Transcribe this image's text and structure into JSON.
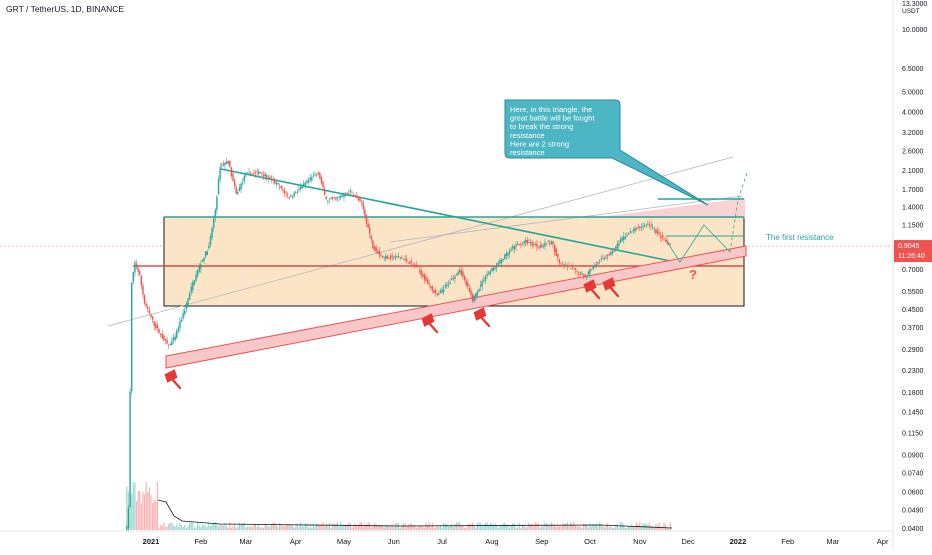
{
  "header": {
    "symbol": "GRT / TetherUS, 1D, BINANCE"
  },
  "price_axis": {
    "top_value": "13.3000",
    "currency": "USDT",
    "current_price": "0.9045",
    "countdown": "11:26:40",
    "current_price_color": "#ef5350"
  },
  "colors": {
    "up": "#26a69a",
    "down": "#ef5350",
    "resistance_line": "#26a69a",
    "support_channel": "#ef5350",
    "box_fill": "#fce5c6",
    "callout_fill": "#4db6c4"
  },
  "annotations": {
    "callout_lines": [
      "Here, in this triangle, the",
      "great battle will be fought",
      "to break the strong",
      "resistance",
      "Here are 2 strong",
      "resistance"
    ],
    "first_resistance_label": "The first resistance",
    "question_mark": "?"
  },
  "chart_data": {
    "type": "candlestick",
    "title": "GRT / TetherUS, 1D, BINANCE",
    "y_scale": "log",
    "y_ticks": [
      13.3,
      10.0,
      6.5,
      5.0,
      4.0,
      3.2,
      2.6,
      2.1,
      1.7,
      1.4,
      1.15,
      0.9,
      0.7,
      0.55,
      0.45,
      0.37,
      0.29,
      0.23,
      0.18,
      0.145,
      0.115,
      0.09,
      0.074,
      0.06,
      0.049,
      0.04
    ],
    "y_tick_labels": [
      "13.3000",
      "10.0000",
      "6.5000",
      "5.0000",
      "4.0000",
      "3.2000",
      "2.6000",
      "2.1000",
      "1.7000",
      "1.4000",
      "1.1500",
      "0.9000",
      "0.7000",
      "0.5500",
      "0.4500",
      "0.3700",
      "0.2900",
      "0.2300",
      "0.1800",
      "0.1450",
      "0.1150",
      "0.0900",
      "0.0740",
      "0.0600",
      "0.0490",
      "0.0400"
    ],
    "x_labels": [
      "2021",
      "Feb",
      "Mar",
      "Apr",
      "May",
      "Jun",
      "Jul",
      "Aug",
      "Sep",
      "Oct",
      "Nov",
      "Dec",
      "2022",
      "Feb",
      "Mar",
      "Apr"
    ],
    "x_label_dates": [
      "2021-01-01",
      "2021-02-01",
      "2021-03-01",
      "2021-04-01",
      "2021-05-01",
      "2021-06-01",
      "2021-07-01",
      "2021-08-01",
      "2021-09-01",
      "2021-10-01",
      "2021-11-01",
      "2021-12-01",
      "2022-01-01",
      "2022-02-01",
      "2022-03-01",
      "2022-04-01"
    ],
    "price_path": [
      [
        "2020-12-17",
        0.04
      ],
      [
        "2020-12-18",
        0.05
      ],
      [
        "2020-12-19",
        0.18
      ],
      [
        "2020-12-20",
        0.6
      ],
      [
        "2020-12-22",
        0.75
      ],
      [
        "2020-12-25",
        0.65
      ],
      [
        "2020-12-28",
        0.48
      ],
      [
        "2021-01-03",
        0.38
      ],
      [
        "2021-01-08",
        0.33
      ],
      [
        "2021-01-12",
        0.3
      ],
      [
        "2021-01-16",
        0.33
      ],
      [
        "2021-01-22",
        0.45
      ],
      [
        "2021-01-27",
        0.6
      ],
      [
        "2021-02-01",
        0.75
      ],
      [
        "2021-02-06",
        0.9
      ],
      [
        "2021-02-10",
        1.35
      ],
      [
        "2021-02-13",
        2.2
      ],
      [
        "2021-02-18",
        2.3
      ],
      [
        "2021-02-23",
        1.6
      ],
      [
        "2021-03-01",
        2.0
      ],
      [
        "2021-03-10",
        2.05
      ],
      [
        "2021-03-20",
        1.8
      ],
      [
        "2021-03-28",
        1.55
      ],
      [
        "2021-04-05",
        1.75
      ],
      [
        "2021-04-15",
        2.05
      ],
      [
        "2021-04-20",
        1.5
      ],
      [
        "2021-04-28",
        1.55
      ],
      [
        "2021-05-05",
        1.65
      ],
      [
        "2021-05-12",
        1.45
      ],
      [
        "2021-05-19",
        0.9
      ],
      [
        "2021-05-25",
        0.8
      ],
      [
        "2021-06-05",
        0.8
      ],
      [
        "2021-06-15",
        0.72
      ],
      [
        "2021-06-21",
        0.62
      ],
      [
        "2021-06-28",
        0.52
      ],
      [
        "2021-07-05",
        0.6
      ],
      [
        "2021-07-12",
        0.7
      ],
      [
        "2021-07-20",
        0.5
      ],
      [
        "2021-07-28",
        0.65
      ],
      [
        "2021-08-05",
        0.75
      ],
      [
        "2021-08-15",
        0.9
      ],
      [
        "2021-08-22",
        0.95
      ],
      [
        "2021-08-30",
        0.9
      ],
      [
        "2021-09-07",
        0.95
      ],
      [
        "2021-09-12",
        0.75
      ],
      [
        "2021-09-20",
        0.7
      ],
      [
        "2021-09-28",
        0.65
      ],
      [
        "2021-10-05",
        0.75
      ],
      [
        "2021-10-15",
        0.85
      ],
      [
        "2021-10-22",
        1.0
      ],
      [
        "2021-10-30",
        1.1
      ],
      [
        "2021-11-07",
        1.15
      ],
      [
        "2021-11-14",
        1.0
      ],
      [
        "2021-11-20",
        0.9045
      ]
    ]
  }
}
